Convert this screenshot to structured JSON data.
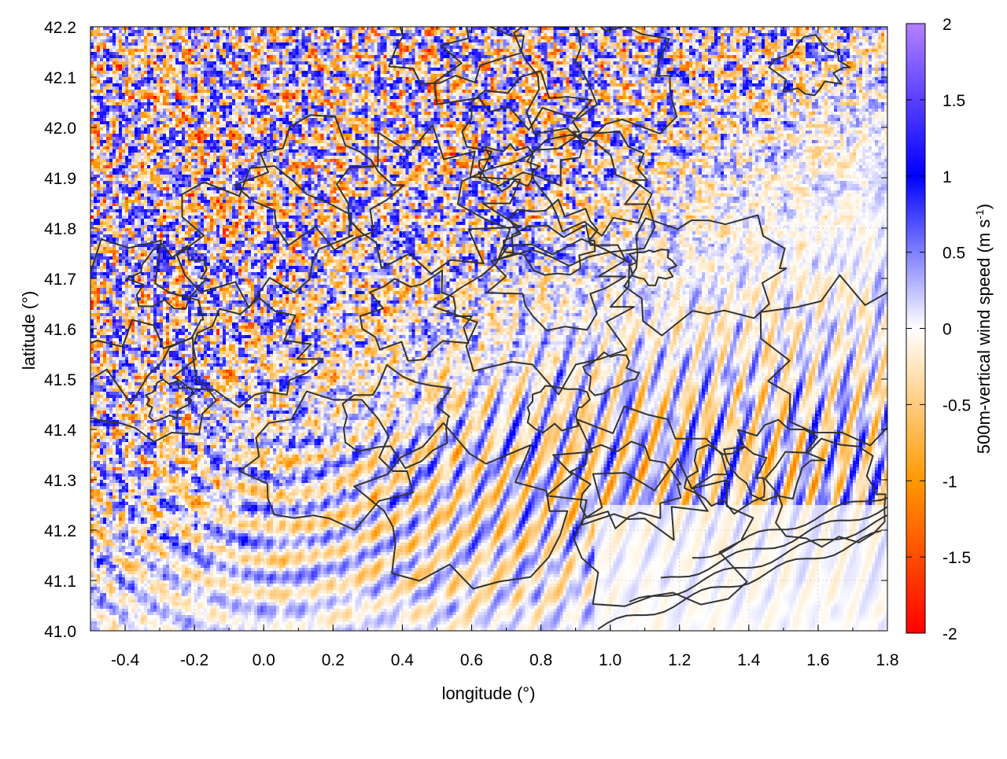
{
  "chart_data": {
    "type": "heatmap",
    "title": "",
    "xlabel": "longitude (°)",
    "ylabel": "latitude (°)",
    "colorbar_label": "500m-vertical wind speed (m s",
    "colorbar_label_superscript": "-1",
    "colorbar_label_close": ")",
    "xlim": [
      -0.5,
      1.8
    ],
    "ylim": [
      41.0,
      42.2
    ],
    "clim": [
      -2,
      2
    ],
    "x_ticks": [
      -0.4,
      -0.2,
      0.0,
      0.2,
      0.4,
      0.6,
      0.8,
      1.0,
      1.2,
      1.4,
      1.6,
      1.8
    ],
    "x_tick_labels": [
      "-0.4",
      "-0.2",
      "0.0",
      "0.2",
      "0.4",
      "0.6",
      "0.8",
      "1.0",
      "1.2",
      "1.4",
      "1.6",
      "1.8"
    ],
    "y_ticks": [
      41.0,
      41.1,
      41.2,
      41.3,
      41.4,
      41.5,
      41.6,
      41.7,
      41.8,
      41.9,
      42.0,
      42.1,
      42.2
    ],
    "y_tick_labels": [
      "41.0",
      "41.1",
      "41.2",
      "41.3",
      "41.4",
      "41.5",
      "41.6",
      "41.7",
      "41.8",
      "41.9",
      "42.0",
      "42.1",
      "42.2"
    ],
    "colorbar_ticks": [
      2,
      1.5,
      1,
      0.5,
      0,
      -0.5,
      -1,
      -1.5,
      -2
    ],
    "colorbar_tick_labels": [
      "2",
      "1.5",
      "1",
      "0.5",
      "0",
      "-0.5",
      "-1",
      "-1.5",
      "-2"
    ],
    "colormap": [
      "#ff0000",
      "#ff9900",
      "#ffffff",
      "#0000ff",
      "#b380ff"
    ],
    "grid": true,
    "overlay": "terrain contour lines (dark gray)",
    "field_description": "turbulent small-scale cells over the north and west; wave-like streaks radiating over the southern part; mostly calm to the south-east"
  }
}
